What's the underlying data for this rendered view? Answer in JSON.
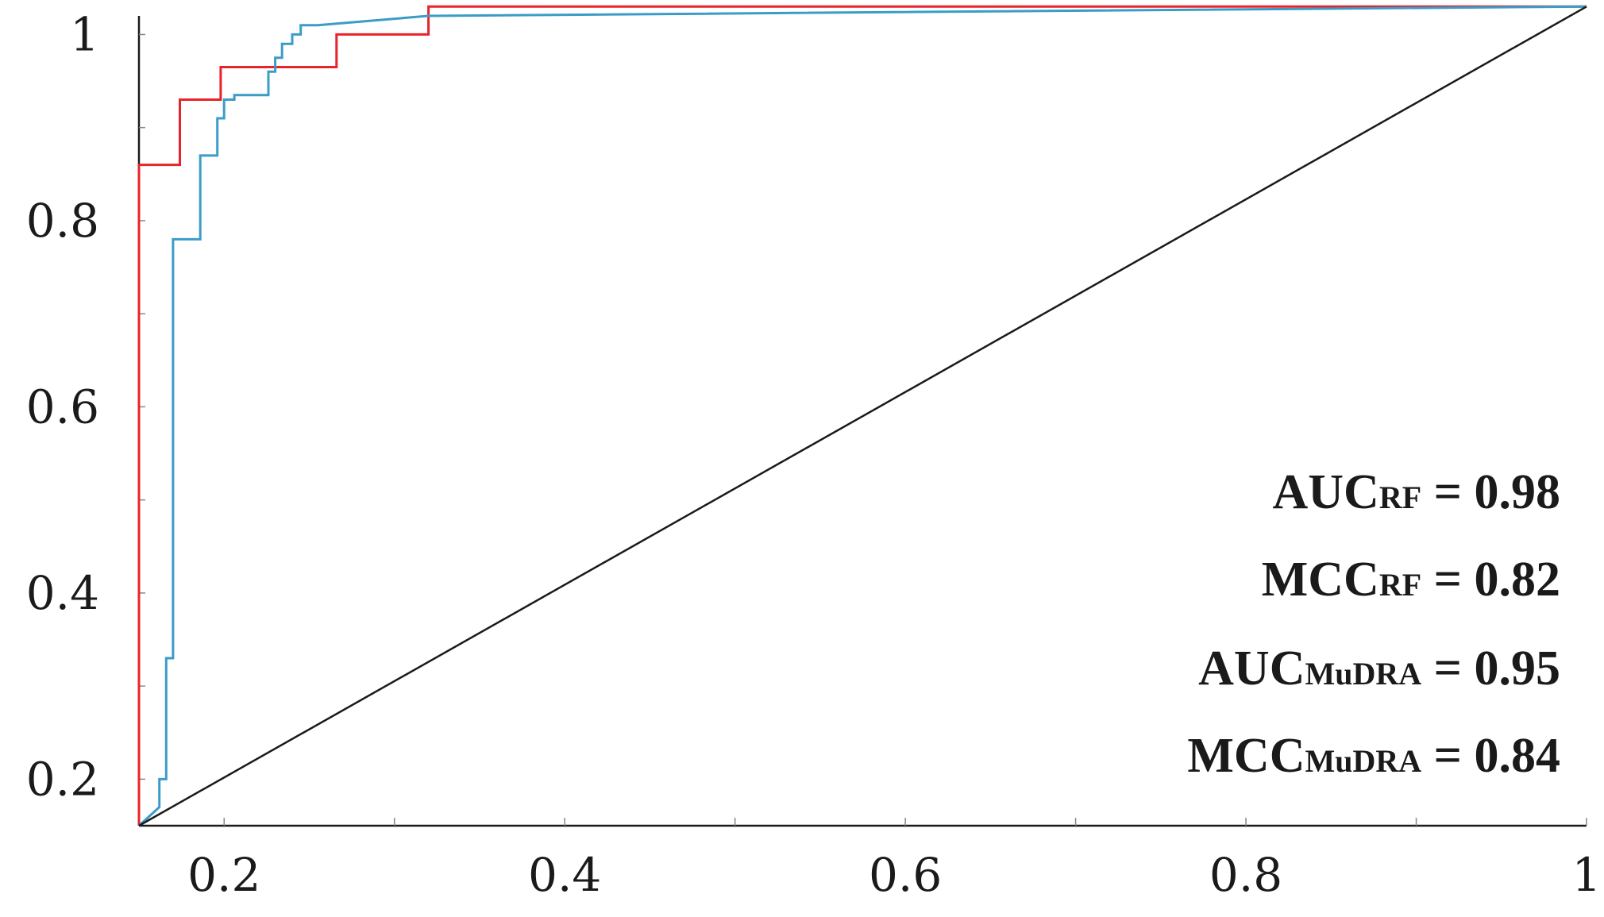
{
  "chart_data": {
    "type": "line",
    "title": "",
    "xlabel": "",
    "ylabel": "",
    "xlim": [
      0.15,
      1.0
    ],
    "ylim": [
      0.15,
      1.02
    ],
    "x_ticks": [
      0.2,
      0.4,
      0.6,
      0.8,
      1.0
    ],
    "x_tick_labels": [
      "0.2",
      "0.4",
      "0.6",
      "0.8",
      "1"
    ],
    "y_ticks": [
      0.2,
      0.4,
      0.6,
      0.8,
      1.0
    ],
    "y_tick_labels": [
      "0.2",
      "0.4",
      "0.6",
      "0.8",
      "1"
    ],
    "grid": false,
    "series": [
      {
        "color": "#e8232a",
        "x": [
          0.15,
          0.15,
          0.174,
          0.174,
          0.198,
          0.198,
          0.242,
          0.242,
          0.266,
          0.266,
          0.32,
          0.32,
          1.0
        ],
        "y": [
          0.15,
          0.86,
          0.86,
          0.93,
          0.93,
          0.965,
          0.965,
          0.965,
          0.965,
          1.0,
          1.0,
          1.03,
          1.03
        ]
      },
      {
        "color": "#3b9cc8",
        "x": [
          0.15,
          0.162,
          0.162,
          0.166,
          0.166,
          0.17,
          0.17,
          0.174,
          0.174,
          0.186,
          0.186,
          0.196,
          0.196,
          0.2,
          0.2,
          0.206,
          0.206,
          0.226,
          0.226,
          0.23,
          0.23,
          0.234,
          0.234,
          0.24,
          0.24,
          0.245,
          0.245,
          0.255,
          0.255,
          0.32,
          1.0
        ],
        "y": [
          0.15,
          0.17,
          0.2,
          0.2,
          0.33,
          0.33,
          0.78,
          0.78,
          0.78,
          0.78,
          0.87,
          0.87,
          0.91,
          0.91,
          0.93,
          0.93,
          0.935,
          0.935,
          0.96,
          0.96,
          0.975,
          0.975,
          0.99,
          0.99,
          1.0,
          1.0,
          1.01,
          1.01,
          1.01,
          1.02,
          1.03
        ]
      },
      {
        "color": "#1a1a1a",
        "x": [
          0.15,
          1.0
        ],
        "y": [
          0.15,
          1.03
        ]
      }
    ],
    "annotations": [
      {
        "main": "AUC",
        "sub": "RF",
        "value": " = 0.98"
      },
      {
        "main": "MCC",
        "sub": "RF",
        "value": " = 0.82"
      },
      {
        "main": "AUC",
        "sub": "MuDRA",
        "value": " = 0.95"
      },
      {
        "main": "MCC",
        "sub": "MuDRA",
        "value": " = 0.84"
      }
    ]
  }
}
